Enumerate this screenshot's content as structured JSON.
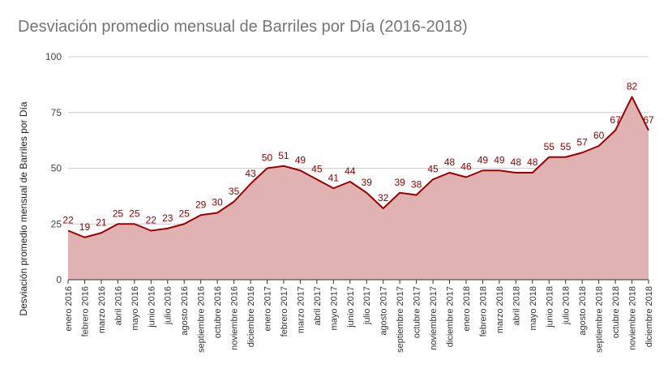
{
  "chart_data": {
    "type": "area",
    "title": "Desviación promedio mensual de Barriles por Día (2016-2018)",
    "ylabel": "Desviación promedio mensual de Barriles por Día",
    "xlabel": "",
    "ylim": [
      0,
      100
    ],
    "yticks": [
      0,
      25,
      50,
      75,
      100
    ],
    "grid": true,
    "legend": "none",
    "colors": {
      "line": "#990000",
      "fill": "#e0b2b2",
      "grid": "#cccccc",
      "label": "#8b0000"
    },
    "categories": [
      "enero 2016",
      "febrero 2016",
      "marzo 2016",
      "abril 2016",
      "mayo 2016",
      "junio 2016",
      "julio 2016",
      "agosto 2016",
      "septiembre 2016",
      "octubre 2016",
      "noviembre 2016",
      "diciembre 2016",
      "enero 2017",
      "febrero 2017",
      "marzo 2017",
      "abril 2017",
      "mayo 2017",
      "junio 2017",
      "julio 2017",
      "agosto 2017",
      "septiembre 2017",
      "octubre 2017",
      "noviembre 2017",
      "diciembre 2017",
      "enero 2018",
      "febrero 2018",
      "marzo 2018",
      "abril 2018",
      "mayo 2018",
      "junio 2018",
      "julio 2018",
      "agosto 2018",
      "septiembre 2018",
      "octubre 2018",
      "noviembre 2018",
      "diciembre 2018"
    ],
    "values": [
      22,
      19,
      21,
      25,
      25,
      22,
      23,
      25,
      29,
      30,
      35,
      43,
      50,
      51,
      49,
      45,
      41,
      44,
      39,
      32,
      39,
      38,
      45,
      48,
      46,
      49,
      49,
      48,
      48,
      55,
      55,
      57,
      60,
      67,
      82,
      67
    ]
  }
}
